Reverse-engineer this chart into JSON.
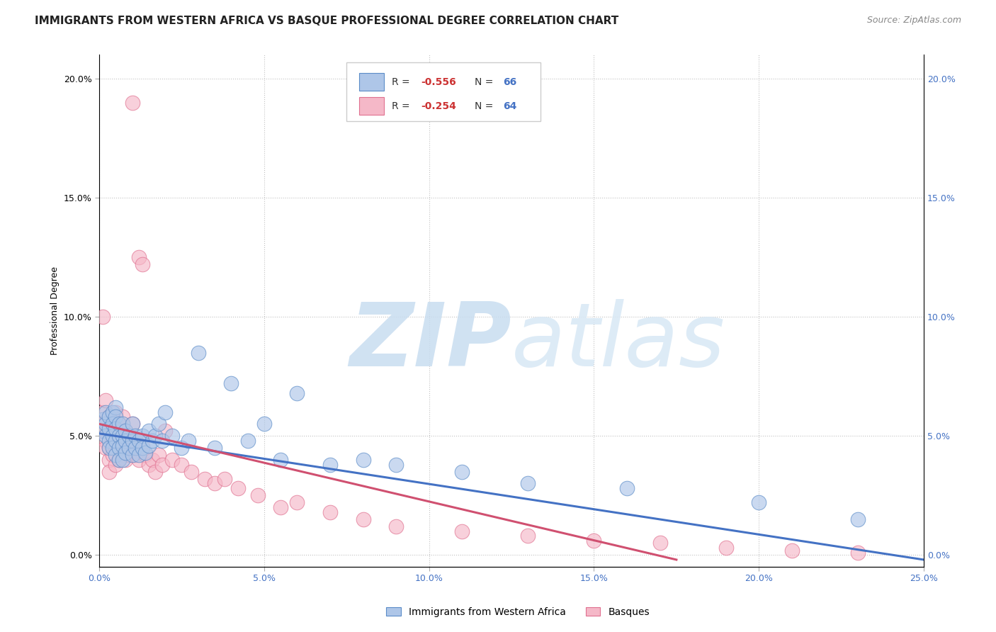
{
  "title": "IMMIGRANTS FROM WESTERN AFRICA VS BASQUE PROFESSIONAL DEGREE CORRELATION CHART",
  "source": "Source: ZipAtlas.com",
  "ylabel": "Professional Degree",
  "xlim": [
    0.0,
    0.25
  ],
  "ylim": [
    -0.005,
    0.21
  ],
  "xticks": [
    0.0,
    0.05,
    0.1,
    0.15,
    0.2,
    0.25
  ],
  "yticks": [
    0.0,
    0.05,
    0.1,
    0.15,
    0.2
  ],
  "blue_color": "#aec6e8",
  "pink_color": "#f5b8c8",
  "blue_edge_color": "#5b8cc8",
  "pink_edge_color": "#e07090",
  "blue_line_color": "#4472c4",
  "pink_line_color": "#d05070",
  "legend_label_blue": "Immigrants from Western Africa",
  "legend_label_pink": "Basques",
  "watermark": "ZIPatlas",
  "watermark_color": "#ccddf0",
  "title_fontsize": 11,
  "source_fontsize": 9,
  "axis_label_fontsize": 9,
  "tick_fontsize": 9,
  "blue_scatter_x": [
    0.001,
    0.001,
    0.002,
    0.002,
    0.002,
    0.003,
    0.003,
    0.003,
    0.003,
    0.004,
    0.004,
    0.004,
    0.004,
    0.005,
    0.005,
    0.005,
    0.005,
    0.005,
    0.006,
    0.006,
    0.006,
    0.006,
    0.007,
    0.007,
    0.007,
    0.007,
    0.008,
    0.008,
    0.008,
    0.009,
    0.009,
    0.01,
    0.01,
    0.01,
    0.011,
    0.011,
    0.012,
    0.012,
    0.013,
    0.013,
    0.014,
    0.015,
    0.015,
    0.016,
    0.017,
    0.018,
    0.019,
    0.02,
    0.022,
    0.025,
    0.027,
    0.03,
    0.035,
    0.04,
    0.045,
    0.05,
    0.055,
    0.06,
    0.07,
    0.08,
    0.09,
    0.11,
    0.13,
    0.16,
    0.2,
    0.23
  ],
  "blue_scatter_y": [
    0.057,
    0.052,
    0.055,
    0.06,
    0.05,
    0.058,
    0.048,
    0.053,
    0.045,
    0.06,
    0.055,
    0.05,
    0.045,
    0.062,
    0.058,
    0.053,
    0.048,
    0.042,
    0.055,
    0.05,
    0.045,
    0.04,
    0.055,
    0.05,
    0.046,
    0.04,
    0.052,
    0.048,
    0.043,
    0.05,
    0.045,
    0.055,
    0.048,
    0.042,
    0.05,
    0.045,
    0.048,
    0.042,
    0.05,
    0.045,
    0.043,
    0.052,
    0.046,
    0.048,
    0.05,
    0.055,
    0.048,
    0.06,
    0.05,
    0.045,
    0.048,
    0.085,
    0.045,
    0.072,
    0.048,
    0.055,
    0.04,
    0.068,
    0.038,
    0.04,
    0.038,
    0.035,
    0.03,
    0.028,
    0.022,
    0.015
  ],
  "pink_scatter_x": [
    0.001,
    0.001,
    0.001,
    0.002,
    0.002,
    0.002,
    0.002,
    0.003,
    0.003,
    0.003,
    0.003,
    0.004,
    0.004,
    0.004,
    0.005,
    0.005,
    0.005,
    0.005,
    0.006,
    0.006,
    0.006,
    0.007,
    0.007,
    0.007,
    0.008,
    0.008,
    0.008,
    0.009,
    0.009,
    0.01,
    0.01,
    0.011,
    0.011,
    0.012,
    0.012,
    0.013,
    0.013,
    0.014,
    0.015,
    0.016,
    0.017,
    0.018,
    0.019,
    0.02,
    0.022,
    0.025,
    0.028,
    0.032,
    0.035,
    0.038,
    0.042,
    0.048,
    0.055,
    0.06,
    0.07,
    0.08,
    0.09,
    0.11,
    0.13,
    0.15,
    0.17,
    0.19,
    0.21,
    0.23
  ],
  "pink_scatter_y": [
    0.06,
    0.055,
    0.1,
    0.052,
    0.048,
    0.045,
    0.065,
    0.058,
    0.045,
    0.04,
    0.035,
    0.055,
    0.048,
    0.042,
    0.06,
    0.052,
    0.045,
    0.038,
    0.055,
    0.048,
    0.04,
    0.058,
    0.05,
    0.042,
    0.052,
    0.046,
    0.04,
    0.048,
    0.042,
    0.19,
    0.055,
    0.048,
    0.042,
    0.125,
    0.04,
    0.122,
    0.046,
    0.042,
    0.038,
    0.04,
    0.035,
    0.042,
    0.038,
    0.052,
    0.04,
    0.038,
    0.035,
    0.032,
    0.03,
    0.032,
    0.028,
    0.025,
    0.02,
    0.022,
    0.018,
    0.015,
    0.012,
    0.01,
    0.008,
    0.006,
    0.005,
    0.003,
    0.002,
    0.001
  ],
  "blue_line_x0": 0.0,
  "blue_line_y0": 0.051,
  "blue_line_x1": 0.25,
  "blue_line_y1": -0.002,
  "pink_line_x0": 0.0,
  "pink_line_y0": 0.055,
  "pink_line_x1": 0.175,
  "pink_line_y1": -0.002
}
